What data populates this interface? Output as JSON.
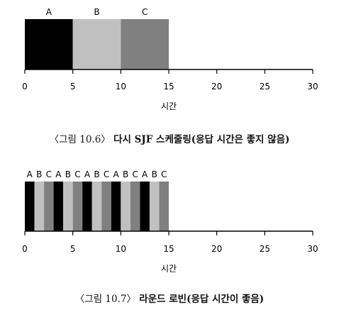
{
  "figures": [
    {
      "caption_prefix": "〈그림 10.6〉",
      "caption_title": "다시 SJF 스케줄링(응답 시간은 좋지 않음)"
    },
    {
      "caption_prefix": "〈그림 10.7〉",
      "caption_title": "라운드 로빈(응답 시간이 좋음)"
    }
  ],
  "colors": {
    "A": "#000000",
    "B": "#c0c0c0",
    "C": "#808080"
  },
  "chart_data": [
    {
      "type": "bar",
      "subtype": "gantt",
      "xlabel": "시간",
      "xlim": [
        0,
        30
      ],
      "xticks": [
        "0",
        "5",
        "10",
        "15",
        "20",
        "25",
        "30"
      ],
      "segments": [
        {
          "job": "A",
          "start": 0,
          "end": 5
        },
        {
          "job": "B",
          "start": 5,
          "end": 10
        },
        {
          "job": "C",
          "start": 10,
          "end": 15
        }
      ]
    },
    {
      "type": "bar",
      "subtype": "gantt",
      "xlabel": "시간",
      "xlim": [
        0,
        30
      ],
      "xticks": [
        "0",
        "5",
        "10",
        "15",
        "20",
        "25",
        "30"
      ],
      "segments": [
        {
          "job": "A",
          "start": 0,
          "end": 1
        },
        {
          "job": "B",
          "start": 1,
          "end": 2
        },
        {
          "job": "C",
          "start": 2,
          "end": 3
        },
        {
          "job": "A",
          "start": 3,
          "end": 4
        },
        {
          "job": "B",
          "start": 4,
          "end": 5
        },
        {
          "job": "C",
          "start": 5,
          "end": 6
        },
        {
          "job": "A",
          "start": 6,
          "end": 7
        },
        {
          "job": "B",
          "start": 7,
          "end": 8
        },
        {
          "job": "C",
          "start": 8,
          "end": 9
        },
        {
          "job": "A",
          "start": 9,
          "end": 10
        },
        {
          "job": "B",
          "start": 10,
          "end": 11
        },
        {
          "job": "C",
          "start": 11,
          "end": 12
        },
        {
          "job": "A",
          "start": 12,
          "end": 13
        },
        {
          "job": "B",
          "start": 13,
          "end": 14
        },
        {
          "job": "C",
          "start": 14,
          "end": 15
        }
      ]
    }
  ]
}
